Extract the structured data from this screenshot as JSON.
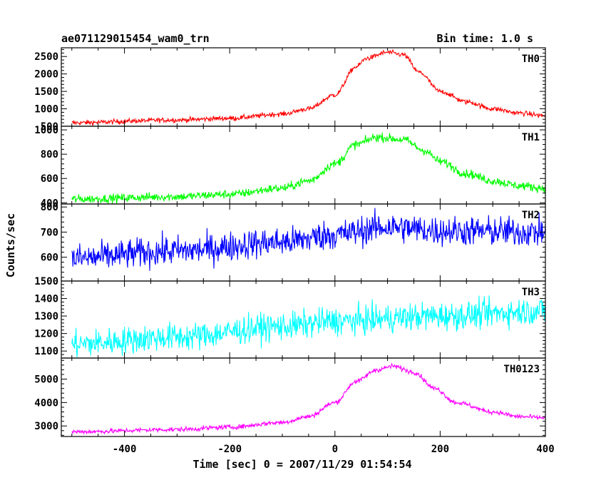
{
  "chart_data": {
    "type": "line",
    "title_left": "ae071129015454_wam0_trn",
    "title_right": "Bin time: 1.0 s",
    "xlabel": "Time [sec] 0 = 2007/11/29 01:54:54",
    "ylabel": "Counts/sec",
    "xlim": [
      -520,
      400
    ],
    "x_ticks": [
      -400,
      -200,
      0,
      200,
      400
    ],
    "x_range": [
      -500,
      400
    ],
    "panels": [
      {
        "name": "TH0",
        "color": "#ff0000",
        "ylim": [
          500,
          2750
        ],
        "y_ticks": [
          500,
          1000,
          1500,
          2000,
          2500
        ],
        "noise": 35,
        "profile": [
          [
            -500,
            600
          ],
          [
            -300,
            680
          ],
          [
            -200,
            730
          ],
          [
            -100,
            850
          ],
          [
            -50,
            1000
          ],
          [
            0,
            1400
          ],
          [
            40,
            2200
          ],
          [
            60,
            2450
          ],
          [
            100,
            2620
          ],
          [
            130,
            2550
          ],
          [
            160,
            2050
          ],
          [
            200,
            1500
          ],
          [
            250,
            1200
          ],
          [
            300,
            1000
          ],
          [
            350,
            880
          ],
          [
            400,
            800
          ]
        ]
      },
      {
        "name": "TH1",
        "color": "#00ff00",
        "ylim": [
          390,
          1030
        ],
        "y_ticks": [
          400,
          600,
          800,
          1000
        ],
        "noise": 18,
        "profile": [
          [
            -500,
            430
          ],
          [
            -300,
            450
          ],
          [
            -200,
            470
          ],
          [
            -100,
            520
          ],
          [
            -50,
            580
          ],
          [
            0,
            720
          ],
          [
            40,
            880
          ],
          [
            80,
            940
          ],
          [
            130,
            920
          ],
          [
            170,
            830
          ],
          [
            200,
            740
          ],
          [
            250,
            640
          ],
          [
            300,
            580
          ],
          [
            350,
            540
          ],
          [
            400,
            520
          ]
        ]
      },
      {
        "name": "TH2",
        "color": "#0000ff",
        "ylim": [
          505,
          812
        ],
        "y_ticks": [
          600,
          700,
          800
        ],
        "noise": 30,
        "profile": [
          [
            -500,
            595
          ],
          [
            -300,
            625
          ],
          [
            -100,
            660
          ],
          [
            0,
            690
          ],
          [
            100,
            720
          ],
          [
            200,
            705
          ],
          [
            400,
            700
          ]
        ]
      },
      {
        "name": "TH3",
        "color": "#00ffff",
        "ylim": [
          1060,
          1500
        ],
        "y_ticks": [
          1100,
          1200,
          1300,
          1400,
          1500
        ],
        "noise": 40,
        "profile": [
          [
            -500,
            1140
          ],
          [
            -300,
            1180
          ],
          [
            -100,
            1240
          ],
          [
            0,
            1270
          ],
          [
            200,
            1300
          ],
          [
            400,
            1330
          ]
        ]
      },
      {
        "name": "TH0123",
        "color": "#ff00ff",
        "ylim": [
          2550,
          5900
        ],
        "y_ticks": [
          3000,
          4000,
          5000
        ],
        "noise": 50,
        "profile": [
          [
            -500,
            2750
          ],
          [
            -300,
            2850
          ],
          [
            -200,
            2950
          ],
          [
            -100,
            3150
          ],
          [
            -50,
            3400
          ],
          [
            0,
            4000
          ],
          [
            40,
            4900
          ],
          [
            80,
            5400
          ],
          [
            110,
            5550
          ],
          [
            150,
            5300
          ],
          [
            190,
            4600
          ],
          [
            230,
            4000
          ],
          [
            300,
            3600
          ],
          [
            350,
            3400
          ],
          [
            400,
            3350
          ]
        ]
      }
    ]
  }
}
